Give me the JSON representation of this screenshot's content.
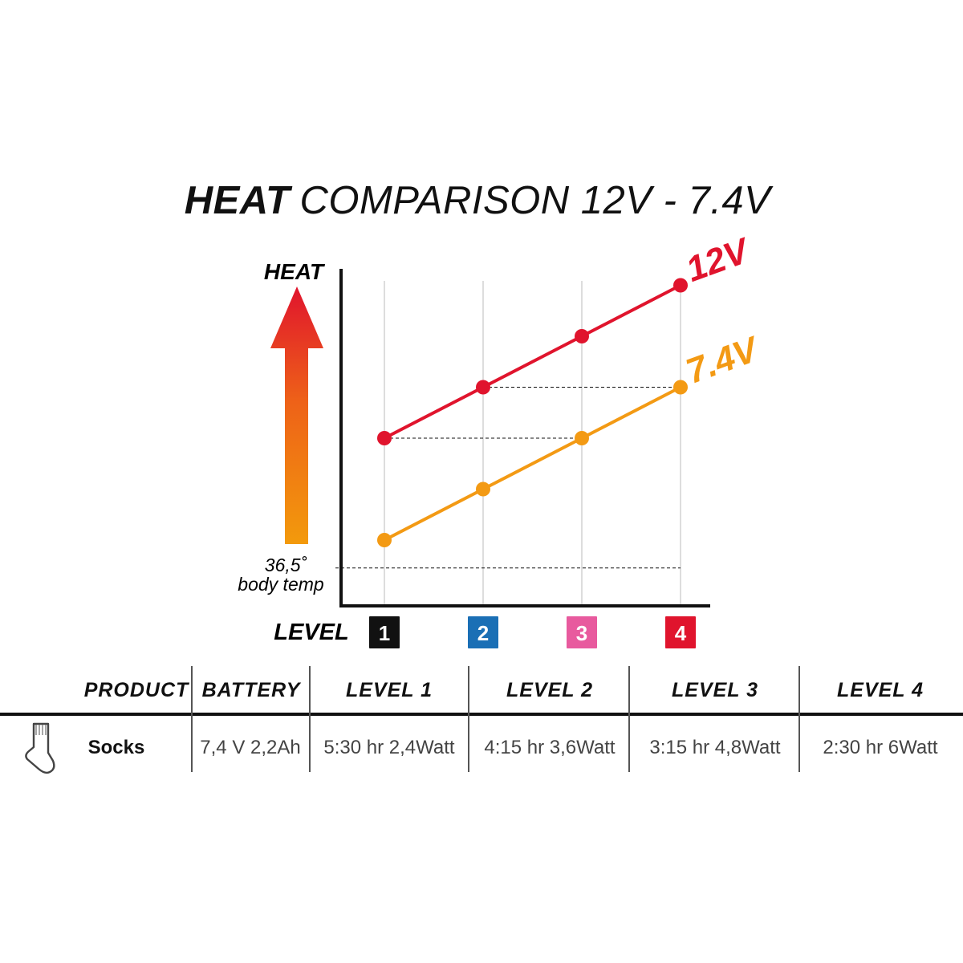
{
  "title": {
    "bold": "HEAT",
    "rest": "COMPARISON 12V - 7.4V"
  },
  "colors": {
    "red": "#e0142d",
    "orange": "#f39a14",
    "black": "#111111",
    "level_colors": [
      "#111111",
      "#1a6fb5",
      "#e85a9e",
      "#e0142d"
    ]
  },
  "chart_data": {
    "type": "line",
    "title": "HEAT COMPARISON 12V - 7.4V",
    "ylabel": "HEAT",
    "xlabel": "LEVEL",
    "categories": [
      "1",
      "2",
      "3",
      "4"
    ],
    "baseline_label_value": "36,5˚",
    "baseline_label_text": "body temp",
    "series": [
      {
        "name": "12V",
        "values": [
          4,
          5,
          6,
          7
        ],
        "color": "#e0142d"
      },
      {
        "name": "7.4V",
        "values": [
          2,
          3,
          4,
          5
        ],
        "color": "#f39a14"
      }
    ],
    "ylim": [
      0,
      8.5
    ],
    "baseline_value": 1.5,
    "grid": "vertical"
  },
  "table": {
    "headers": [
      "PRODUCT",
      "BATTERY",
      "LEVEL 1",
      "LEVEL 2",
      "LEVEL 3",
      "LEVEL 4"
    ],
    "row": {
      "icon": "sock-icon",
      "product": "Socks",
      "battery": "7,4 V 2,2Ah",
      "levels": [
        "5:30 hr 2,4Watt",
        "4:15 hr 3,6Watt",
        "3:15 hr 4,8Watt",
        "2:30 hr 6Watt"
      ]
    }
  }
}
